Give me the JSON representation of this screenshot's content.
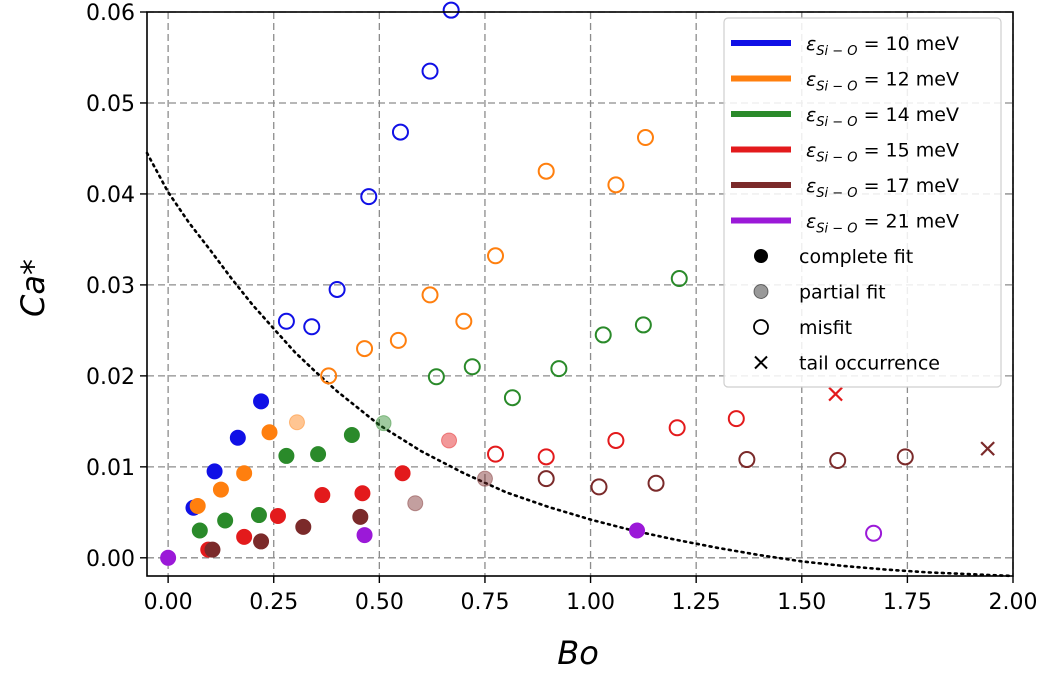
{
  "chart_data": {
    "type": "scatter",
    "xlabel": "Bo",
    "ylabel": "Ca*",
    "xlim": [
      -0.05,
      2.0
    ],
    "ylim": [
      -0.002,
      0.06
    ],
    "xticks": [
      "0.00",
      "0.25",
      "0.50",
      "0.75",
      "1.00",
      "1.25",
      "1.50",
      "1.75",
      "2.00"
    ],
    "yticks": [
      "0.00",
      "0.01",
      "0.02",
      "0.03",
      "0.04",
      "0.05",
      "0.06"
    ],
    "grid": true,
    "legend_position": "top-right",
    "colors": {
      "10": "#1010e6",
      "12": "#ff7f0e",
      "14": "#2a8a2a",
      "15": "#e31a1c",
      "17": "#7b2a2a",
      "21": "#9b19d8"
    },
    "series": [
      {
        "name": "ε_{Si−O} = 10 meV",
        "key": "10",
        "points": [
          {
            "x": 0.06,
            "y": 0.0055,
            "fit": "complete"
          },
          {
            "x": 0.11,
            "y": 0.0095,
            "fit": "complete"
          },
          {
            "x": 0.165,
            "y": 0.0132,
            "fit": "complete"
          },
          {
            "x": 0.22,
            "y": 0.0172,
            "fit": "complete"
          },
          {
            "x": 0.28,
            "y": 0.026,
            "fit": "misfit"
          },
          {
            "x": 0.34,
            "y": 0.0254,
            "fit": "misfit"
          },
          {
            "x": 0.4,
            "y": 0.0295,
            "fit": "misfit"
          },
          {
            "x": 0.475,
            "y": 0.0397,
            "fit": "misfit"
          },
          {
            "x": 0.55,
            "y": 0.0468,
            "fit": "misfit"
          },
          {
            "x": 0.62,
            "y": 0.0535,
            "fit": "misfit"
          },
          {
            "x": 0.67,
            "y": 0.0602,
            "fit": "misfit"
          }
        ]
      },
      {
        "name": "ε_{Si−O} = 12 meV",
        "key": "12",
        "points": [
          {
            "x": 0.07,
            "y": 0.0057,
            "fit": "complete"
          },
          {
            "x": 0.125,
            "y": 0.0075,
            "fit": "complete"
          },
          {
            "x": 0.18,
            "y": 0.0093,
            "fit": "complete"
          },
          {
            "x": 0.24,
            "y": 0.0138,
            "fit": "complete"
          },
          {
            "x": 0.305,
            "y": 0.0149,
            "fit": "partial"
          },
          {
            "x": 0.38,
            "y": 0.02,
            "fit": "misfit"
          },
          {
            "x": 0.465,
            "y": 0.023,
            "fit": "misfit"
          },
          {
            "x": 0.545,
            "y": 0.0239,
            "fit": "misfit"
          },
          {
            "x": 0.62,
            "y": 0.0289,
            "fit": "misfit"
          },
          {
            "x": 0.7,
            "y": 0.026,
            "fit": "misfit"
          },
          {
            "x": 0.775,
            "y": 0.0332,
            "fit": "misfit"
          },
          {
            "x": 0.895,
            "y": 0.0425,
            "fit": "misfit"
          },
          {
            "x": 1.06,
            "y": 0.041,
            "fit": "misfit"
          },
          {
            "x": 1.13,
            "y": 0.0462,
            "fit": "misfit"
          }
        ]
      },
      {
        "name": "ε_{Si−O} = 14 meV",
        "key": "14",
        "points": [
          {
            "x": 0.075,
            "y": 0.003,
            "fit": "complete"
          },
          {
            "x": 0.135,
            "y": 0.0041,
            "fit": "complete"
          },
          {
            "x": 0.215,
            "y": 0.0047,
            "fit": "complete"
          },
          {
            "x": 0.28,
            "y": 0.0112,
            "fit": "complete"
          },
          {
            "x": 0.355,
            "y": 0.0114,
            "fit": "complete"
          },
          {
            "x": 0.435,
            "y": 0.0135,
            "fit": "complete"
          },
          {
            "x": 0.51,
            "y": 0.0148,
            "fit": "partial"
          },
          {
            "x": 0.635,
            "y": 0.0199,
            "fit": "misfit"
          },
          {
            "x": 0.72,
            "y": 0.021,
            "fit": "misfit"
          },
          {
            "x": 0.815,
            "y": 0.0176,
            "fit": "misfit"
          },
          {
            "x": 0.925,
            "y": 0.0208,
            "fit": "misfit"
          },
          {
            "x": 1.03,
            "y": 0.0245,
            "fit": "misfit"
          },
          {
            "x": 1.125,
            "y": 0.0256,
            "fit": "misfit"
          },
          {
            "x": 1.21,
            "y": 0.0307,
            "fit": "misfit"
          }
        ]
      },
      {
        "name": "ε_{Si−O} = 15 meV",
        "key": "15",
        "points": [
          {
            "x": 0.095,
            "y": 0.0009,
            "fit": "complete"
          },
          {
            "x": 0.18,
            "y": 0.0023,
            "fit": "complete"
          },
          {
            "x": 0.26,
            "y": 0.0046,
            "fit": "complete"
          },
          {
            "x": 0.365,
            "y": 0.0069,
            "fit": "complete"
          },
          {
            "x": 0.46,
            "y": 0.0071,
            "fit": "complete"
          },
          {
            "x": 0.555,
            "y": 0.0093,
            "fit": "complete"
          },
          {
            "x": 0.665,
            "y": 0.0129,
            "fit": "partial"
          },
          {
            "x": 0.775,
            "y": 0.0114,
            "fit": "misfit"
          },
          {
            "x": 0.895,
            "y": 0.0111,
            "fit": "misfit"
          },
          {
            "x": 1.06,
            "y": 0.0129,
            "fit": "misfit"
          },
          {
            "x": 1.205,
            "y": 0.0143,
            "fit": "misfit"
          },
          {
            "x": 1.345,
            "y": 0.0153,
            "fit": "misfit"
          },
          {
            "x": 1.58,
            "y": 0.018,
            "fit": "tail"
          }
        ]
      },
      {
        "name": "ε_{Si−O} = 17 meV",
        "key": "17",
        "points": [
          {
            "x": 0.105,
            "y": 0.0009,
            "fit": "complete"
          },
          {
            "x": 0.22,
            "y": 0.0018,
            "fit": "complete"
          },
          {
            "x": 0.32,
            "y": 0.0034,
            "fit": "complete"
          },
          {
            "x": 0.455,
            "y": 0.0045,
            "fit": "complete"
          },
          {
            "x": 0.585,
            "y": 0.006,
            "fit": "partial"
          },
          {
            "x": 0.75,
            "y": 0.0087,
            "fit": "partial"
          },
          {
            "x": 0.895,
            "y": 0.0087,
            "fit": "misfit"
          },
          {
            "x": 1.02,
            "y": 0.0078,
            "fit": "misfit"
          },
          {
            "x": 1.155,
            "y": 0.0082,
            "fit": "misfit"
          },
          {
            "x": 1.37,
            "y": 0.0108,
            "fit": "misfit"
          },
          {
            "x": 1.585,
            "y": 0.0107,
            "fit": "misfit"
          },
          {
            "x": 1.745,
            "y": 0.0111,
            "fit": "misfit"
          },
          {
            "x": 1.94,
            "y": 0.012,
            "fit": "tail"
          }
        ]
      },
      {
        "name": "ε_{Si−O} = 21 meV",
        "key": "21",
        "points": [
          {
            "x": 0.0,
            "y": 0.0,
            "fit": "complete"
          },
          {
            "x": 0.465,
            "y": 0.0025,
            "fit": "complete"
          },
          {
            "x": 1.11,
            "y": 0.003,
            "fit": "complete"
          },
          {
            "x": 1.67,
            "y": 0.0027,
            "fit": "misfit"
          }
        ]
      }
    ],
    "curve": {
      "style": "dotted",
      "points": [
        [
          -0.05,
          0.0445
        ],
        [
          0.0,
          0.0402
        ],
        [
          0.05,
          0.0368
        ],
        [
          0.1,
          0.0338
        ],
        [
          0.15,
          0.0307
        ],
        [
          0.2,
          0.0278
        ],
        [
          0.25,
          0.0252
        ],
        [
          0.3,
          0.0226
        ],
        [
          0.35,
          0.0204
        ],
        [
          0.4,
          0.0183
        ],
        [
          0.5,
          0.0146
        ],
        [
          0.6,
          0.0117
        ],
        [
          0.7,
          0.0093
        ],
        [
          0.8,
          0.0072
        ],
        [
          0.9,
          0.0056
        ],
        [
          1.0,
          0.0042
        ],
        [
          1.1,
          0.003
        ],
        [
          1.2,
          0.002
        ],
        [
          1.3,
          0.0011
        ],
        [
          1.4,
          0.0003
        ],
        [
          1.5,
          -0.0004
        ],
        [
          1.6,
          -0.0009
        ],
        [
          1.7,
          -0.0013
        ],
        [
          1.8,
          -0.0016
        ],
        [
          1.9,
          -0.0018
        ],
        [
          2.0,
          -0.002
        ]
      ]
    },
    "legend": {
      "series_entries": [
        {
          "key": "10",
          "prefix": "ε",
          "sub": "Si − O",
          "suffix": " = 10 meV"
        },
        {
          "key": "12",
          "prefix": "ε",
          "sub": "Si − O",
          "suffix": " = 12 meV"
        },
        {
          "key": "14",
          "prefix": "ε",
          "sub": "Si − O",
          "suffix": " = 14 meV"
        },
        {
          "key": "15",
          "prefix": "ε",
          "sub": "Si − O",
          "suffix": " = 15 meV"
        },
        {
          "key": "17",
          "prefix": "ε",
          "sub": "Si − O",
          "suffix": " = 17 meV"
        },
        {
          "key": "21",
          "prefix": "ε",
          "sub": "Si − O",
          "suffix": " = 21 meV"
        }
      ],
      "marker_entries": [
        {
          "marker": "filled",
          "label": "complete fit"
        },
        {
          "marker": "partial",
          "label": "partial fit"
        },
        {
          "marker": "open",
          "label": "misfit"
        },
        {
          "marker": "cross",
          "label": "tail occurrence"
        }
      ]
    }
  }
}
